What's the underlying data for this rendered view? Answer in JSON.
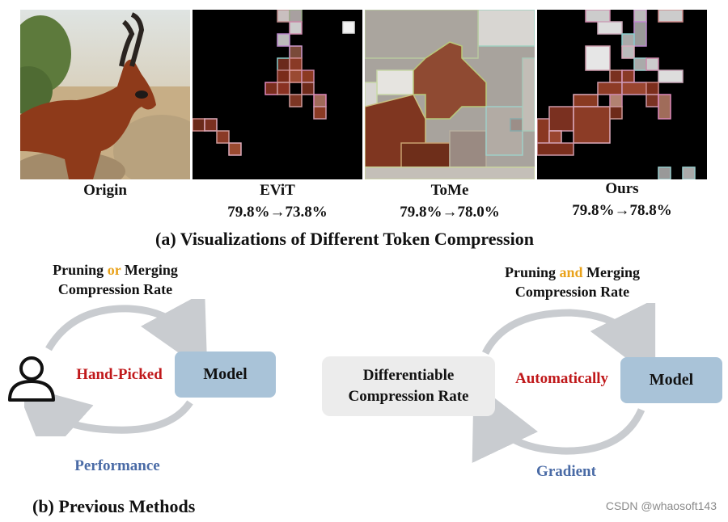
{
  "part_a": {
    "panels": [
      {
        "label": "Origin",
        "metric": ""
      },
      {
        "label": "EViT",
        "metric": "79.8%→73.8%"
      },
      {
        "label": "ToMe",
        "metric": "79.8%→78.0%"
      },
      {
        "label": "Ours",
        "metric": "79.8%→78.8%"
      }
    ],
    "title": "(a) Visualizations of  Different Token Compression"
  },
  "part_b": {
    "previous": {
      "top_label_1": "Pruning",
      "top_label_conj": "or",
      "top_label_2": "Merging",
      "top_label_3": "Compression Rate",
      "center_label": "Hand-Picked",
      "model_label": "Model",
      "bottom_label": "Performance",
      "title": "(b) Previous Methods"
    },
    "ours": {
      "top_label_1": "Pruning",
      "top_label_conj": "and",
      "top_label_2": "Merging",
      "top_label_3": "Compression Rate",
      "left_box": "Differentiable Compression Rate",
      "center_label": "Automatically",
      "model_label": "Model",
      "bottom_label": "Gradient"
    }
  },
  "watermark": "CSDN @whaosoft143",
  "colors": {
    "red": "#c0191b",
    "gold": "#e9a21a",
    "blue": "#4a6ba6",
    "model_box": "#a9c3d8",
    "arrow": "#c9ccd0"
  }
}
